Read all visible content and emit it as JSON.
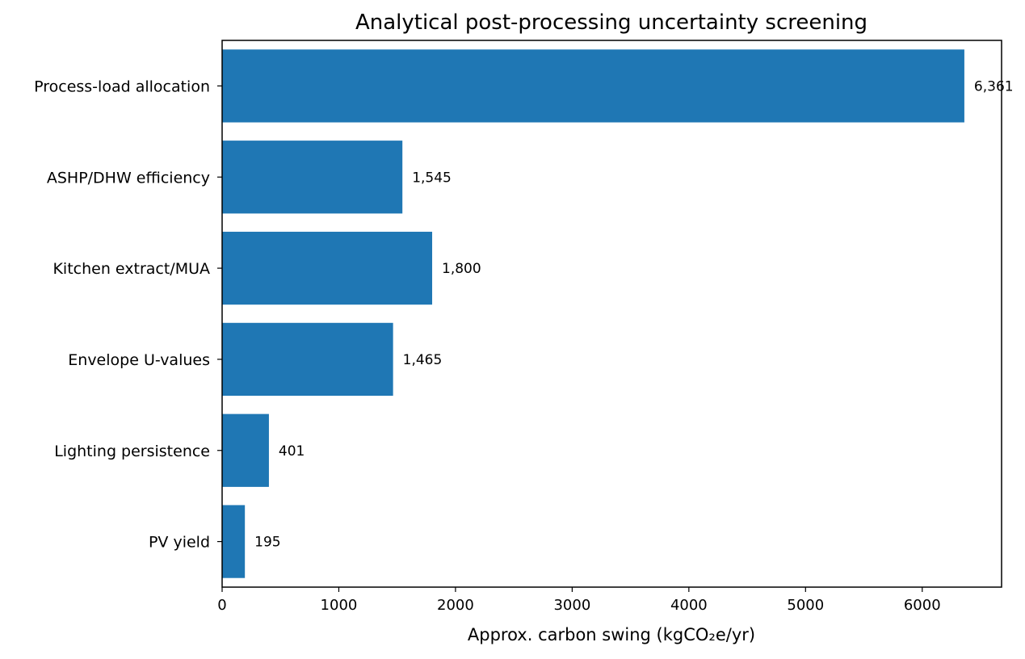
{
  "chart_data": {
    "type": "bar",
    "orientation": "horizontal",
    "title": "Analytical post-processing uncertainty screening",
    "xlabel": "Approx. carbon swing (kgCO₂e/yr)",
    "ylabel": "",
    "categories": [
      "Process-load allocation",
      "ASHP/DHW efficiency",
      "Kitchen extract/MUA",
      "Envelope U-values",
      "Lighting persistence",
      "PV yield"
    ],
    "values": [
      6361,
      1545,
      1800,
      1465,
      401,
      195
    ],
    "value_labels": [
      "6,361",
      "1,545",
      "1,800",
      "1,465",
      "401",
      "195"
    ],
    "xlim": [
      0,
      6680
    ],
    "xticks": [
      0,
      1000,
      2000,
      3000,
      4000,
      5000,
      6000
    ],
    "xtick_labels": [
      "0",
      "1000",
      "2000",
      "3000",
      "4000",
      "5000",
      "6000"
    ],
    "grid": false,
    "legend": "none",
    "bar_color": "#1f77b4"
  }
}
